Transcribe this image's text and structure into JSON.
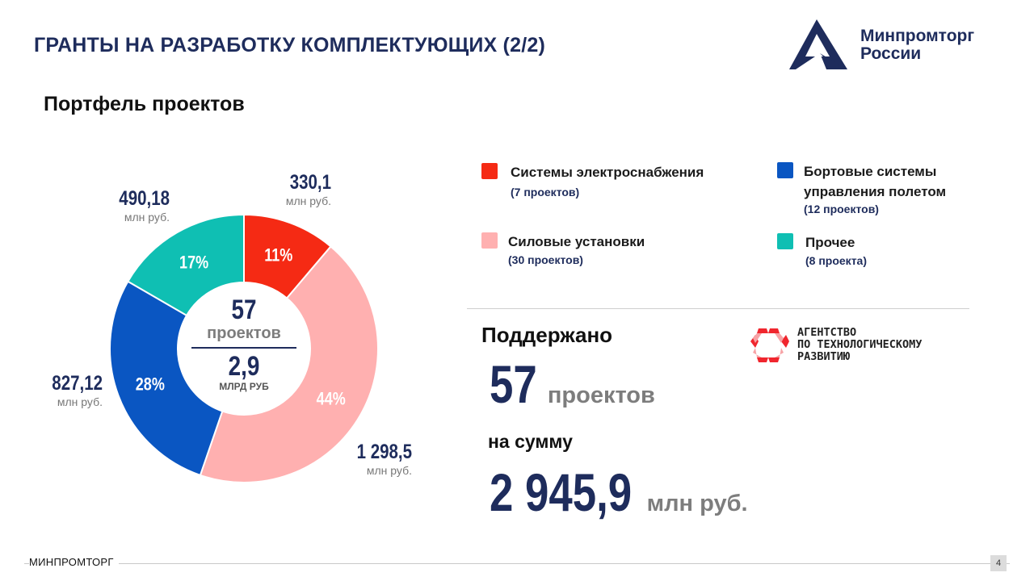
{
  "header": {
    "title": "ГРАНТЫ НА РАЗРАБОТКУ КОМПЛЕКТУЮЩИХ (2/2)",
    "logo_text_line1": "Минпромторг",
    "logo_text_line2": "России"
  },
  "section_title": "Портфель проектов",
  "chart_data": {
    "type": "pie",
    "donut": true,
    "series": [
      {
        "name": "Системы электроснабжения",
        "value": 330.1,
        "value_label": "330,1",
        "unit_label": "млн руб.",
        "percent_label": "11%",
        "color": "#f52a14"
      },
      {
        "name": "Силовые установки",
        "value": 1298.5,
        "value_label": "1 298,5",
        "unit_label": "млн руб.",
        "percent_label": "44%",
        "color": "#ffb0b0"
      },
      {
        "name": "Бортовые системы управления полетом",
        "value": 827.12,
        "value_label": "827,12",
        "unit_label": "млн руб.",
        "percent_label": "28%",
        "color": "#0a56c2"
      },
      {
        "name": "Прочее",
        "value": 490.18,
        "value_label": "490,18",
        "unit_label": "млн руб.",
        "percent_label": "17%",
        "color": "#0fbfb3"
      }
    ],
    "center": {
      "count": "57",
      "count_label": "проектов",
      "sum": "2,9",
      "sum_label": "МЛРД РУБ"
    }
  },
  "legend": [
    {
      "name": "Системы электроснабжения",
      "count": "(7 проектов)",
      "color": "#f52a14"
    },
    {
      "name": "Силовые установки",
      "count": "(30 проектов)",
      "color": "#ffb0b0"
    },
    {
      "name_line1": "Бортовые системы",
      "name_line2": "управления полетом",
      "count": "(12 проектов)",
      "color": "#0a56c2"
    },
    {
      "name": "Прочее",
      "count": "(8 проекта)",
      "color": "#0fbfb3"
    }
  ],
  "summary": {
    "supported_label": "Поддержано",
    "projects_count": "57",
    "projects_unit": "проектов",
    "sum_intro": "на сумму",
    "sum_value": "2 945,9",
    "sum_unit": "млн руб."
  },
  "agency": {
    "line1": "АГЕНТСТВО",
    "line2": "ПО ТЕХНОЛОГИЧЕСКОМУ",
    "line3": "РАЗВИТИЮ"
  },
  "footer": {
    "left": "МИНПРОМТОРГ",
    "page": "4"
  }
}
